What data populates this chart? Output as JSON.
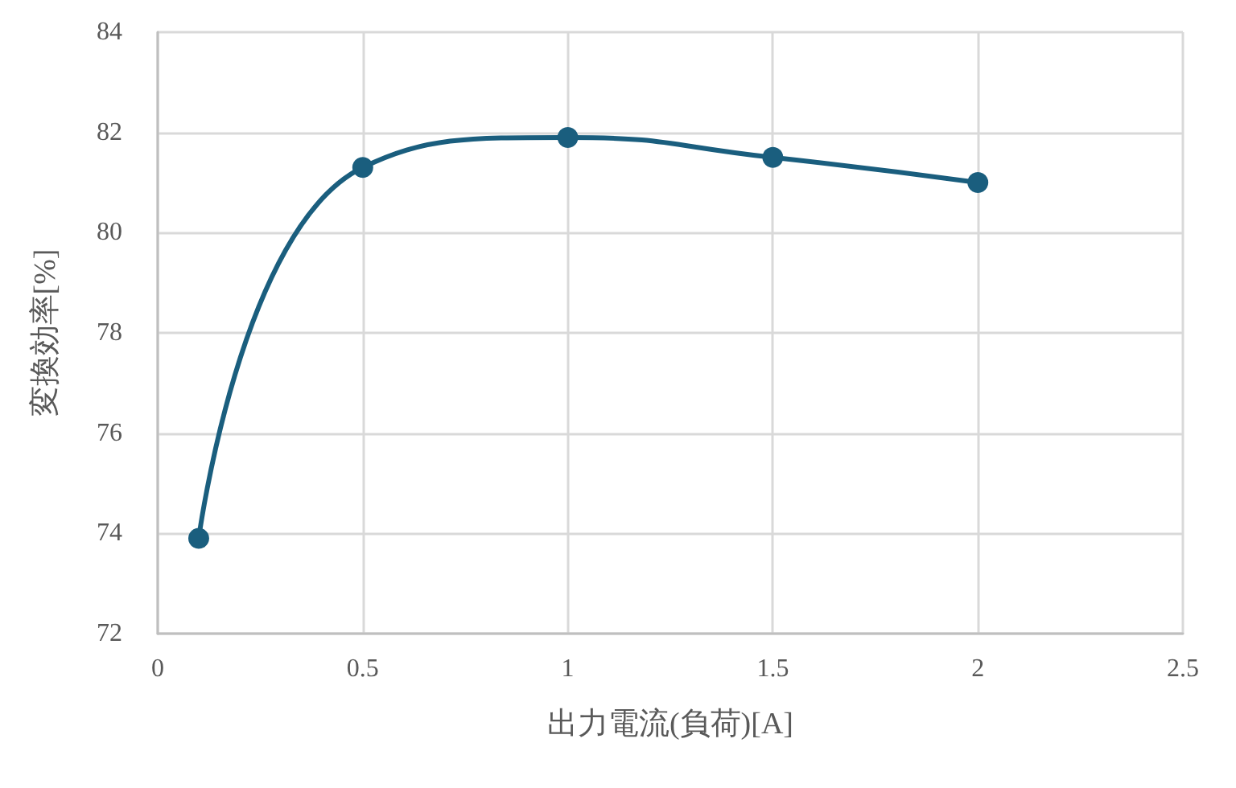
{
  "chart_data": {
    "type": "line",
    "xlabel": "出力電流(負荷)[A]",
    "ylabel": "変換効率[%]",
    "x": [
      0.1,
      0.5,
      1,
      1.5,
      2
    ],
    "series": [
      {
        "color": "#1a5e7e",
        "values": [
          73.9,
          81.3,
          81.9,
          81.5,
          81.0
        ]
      }
    ],
    "xlim": [
      0,
      2.5
    ],
    "xticks": [
      0,
      0.5,
      1,
      1.5,
      2,
      2.5
    ],
    "ylim": [
      72,
      84
    ],
    "yticks": [
      72,
      74,
      76,
      78,
      80,
      82,
      84
    ],
    "grid": true,
    "marker": "circle",
    "line_style": "solid"
  }
}
